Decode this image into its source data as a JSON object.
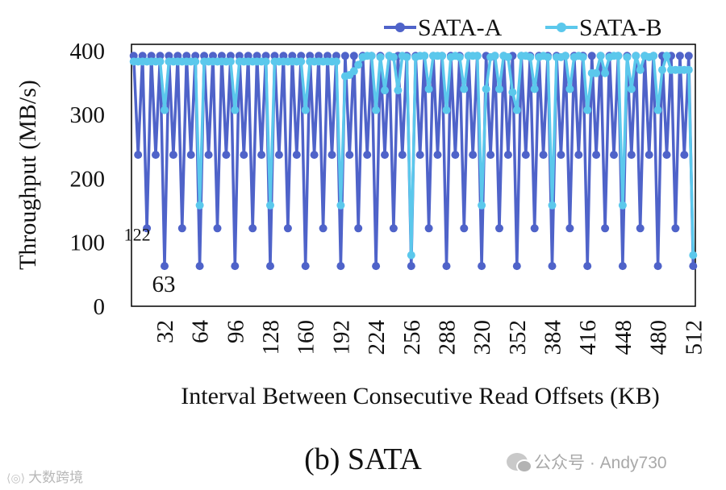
{
  "chart_data": {
    "type": "line",
    "title": "",
    "caption": "(b) SATA",
    "xlabel": "Interval Between Consecutive Read Offsets (KB)",
    "ylabel": "Throughput (MB/s)",
    "xlim": [
      2,
      514
    ],
    "ylim": [
      0,
      410
    ],
    "x_ticks": [
      32,
      64,
      96,
      128,
      160,
      192,
      224,
      256,
      288,
      320,
      352,
      384,
      416,
      448,
      480,
      512
    ],
    "x_tick_labels": [
      "32",
      "64",
      "96",
      "128",
      "160",
      "192",
      "224",
      "256",
      "288",
      "320",
      "352",
      "384",
      "416",
      "448",
      "480",
      "512"
    ],
    "y_ticks": [
      0,
      100,
      200,
      300,
      400
    ],
    "y_tick_labels": [
      "0",
      "100",
      "200",
      "300",
      "400"
    ],
    "legend_position": "top-right",
    "annotations": [
      {
        "text": "122",
        "x": 16,
        "y": 122
      },
      {
        "text": "63",
        "x": 32,
        "y": 63
      }
    ],
    "series": [
      {
        "name": "SATA-A",
        "color": "#4f63c9",
        "x": [
          4,
          8,
          12,
          16,
          20,
          24,
          28,
          32,
          36,
          40,
          44,
          48,
          52,
          56,
          60,
          64,
          68,
          72,
          76,
          80,
          84,
          88,
          92,
          96,
          100,
          104,
          108,
          112,
          116,
          120,
          124,
          128,
          132,
          136,
          140,
          144,
          148,
          152,
          156,
          160,
          164,
          168,
          172,
          176,
          180,
          184,
          188,
          192,
          196,
          200,
          204,
          208,
          212,
          216,
          220,
          224,
          228,
          232,
          236,
          240,
          244,
          248,
          252,
          256,
          260,
          264,
          268,
          272,
          276,
          280,
          284,
          288,
          292,
          296,
          300,
          304,
          308,
          312,
          316,
          320,
          324,
          328,
          332,
          336,
          340,
          344,
          348,
          352,
          356,
          360,
          364,
          368,
          372,
          376,
          380,
          384,
          388,
          392,
          396,
          400,
          404,
          408,
          412,
          416,
          420,
          424,
          428,
          432,
          436,
          440,
          444,
          448,
          452,
          456,
          460,
          464,
          468,
          472,
          476,
          480,
          484,
          488,
          492,
          496,
          500,
          504,
          508,
          512
        ],
        "values": [
          392,
          237,
          392,
          122,
          392,
          237,
          392,
          63,
          392,
          237,
          392,
          122,
          392,
          237,
          392,
          63,
          392,
          237,
          392,
          122,
          392,
          237,
          392,
          63,
          392,
          237,
          392,
          122,
          392,
          237,
          392,
          63,
          392,
          237,
          392,
          122,
          392,
          237,
          392,
          63,
          392,
          237,
          392,
          122,
          392,
          237,
          392,
          63,
          392,
          237,
          392,
          122,
          392,
          237,
          392,
          63,
          392,
          237,
          392,
          122,
          392,
          237,
          392,
          63,
          392,
          237,
          392,
          122,
          392,
          237,
          392,
          63,
          392,
          237,
          392,
          122,
          392,
          237,
          392,
          63,
          392,
          237,
          392,
          122,
          392,
          237,
          392,
          63,
          392,
          237,
          392,
          122,
          392,
          237,
          392,
          63,
          392,
          237,
          392,
          122,
          392,
          237,
          392,
          63,
          392,
          237,
          392,
          122,
          392,
          237,
          392,
          63,
          392,
          237,
          392,
          122,
          392,
          237,
          392,
          63,
          392,
          237,
          392,
          122,
          392,
          237,
          392,
          63
        ]
      },
      {
        "name": "SATA-B",
        "color": "#5bc8ec",
        "x": [
          4,
          8,
          12,
          16,
          20,
          24,
          28,
          32,
          36,
          40,
          44,
          48,
          52,
          56,
          60,
          64,
          68,
          72,
          76,
          80,
          84,
          88,
          92,
          96,
          100,
          104,
          108,
          112,
          116,
          120,
          124,
          128,
          132,
          136,
          140,
          144,
          148,
          152,
          156,
          160,
          164,
          168,
          172,
          176,
          180,
          184,
          188,
          192,
          196,
          200,
          204,
          208,
          212,
          216,
          220,
          224,
          228,
          232,
          236,
          240,
          244,
          248,
          252,
          256,
          260,
          264,
          268,
          272,
          276,
          280,
          284,
          288,
          292,
          296,
          300,
          304,
          308,
          312,
          316,
          320,
          324,
          328,
          332,
          336,
          340,
          344,
          348,
          352,
          356,
          360,
          364,
          368,
          372,
          376,
          380,
          384,
          388,
          392,
          396,
          400,
          404,
          408,
          412,
          416,
          420,
          424,
          428,
          432,
          436,
          440,
          444,
          448,
          452,
          456,
          460,
          464,
          468,
          472,
          476,
          480,
          484,
          488,
          492,
          496,
          500,
          504,
          508,
          512
        ],
        "values": [
          383,
          383,
          383,
          383,
          383,
          383,
          383,
          307,
          383,
          383,
          383,
          383,
          383,
          383,
          383,
          158,
          383,
          383,
          383,
          383,
          383,
          383,
          383,
          307,
          383,
          383,
          383,
          383,
          383,
          383,
          383,
          158,
          383,
          383,
          383,
          383,
          383,
          383,
          383,
          307,
          383,
          383,
          383,
          383,
          383,
          383,
          383,
          158,
          360,
          362,
          368,
          378,
          390,
          392,
          392,
          307,
          390,
          338,
          392,
          390,
          338,
          392,
          390,
          80,
          390,
          392,
          392,
          340,
          392,
          392,
          392,
          307,
          390,
          392,
          390,
          340,
          392,
          392,
          392,
          158,
          340,
          390,
          392,
          340,
          392,
          390,
          335,
          307,
          392,
          392,
          390,
          340,
          390,
          392,
          390,
          158,
          390,
          390,
          392,
          340,
          390,
          392,
          390,
          307,
          365,
          365,
          392,
          365,
          390,
          392,
          392,
          158,
          390,
          340,
          392,
          370,
          392,
          390,
          392,
          307,
          370,
          392,
          370,
          370,
          370,
          370,
          370,
          80
        ]
      }
    ]
  },
  "watermark": {
    "left": "大数跨境",
    "right": "公众号 · Andy730"
  }
}
